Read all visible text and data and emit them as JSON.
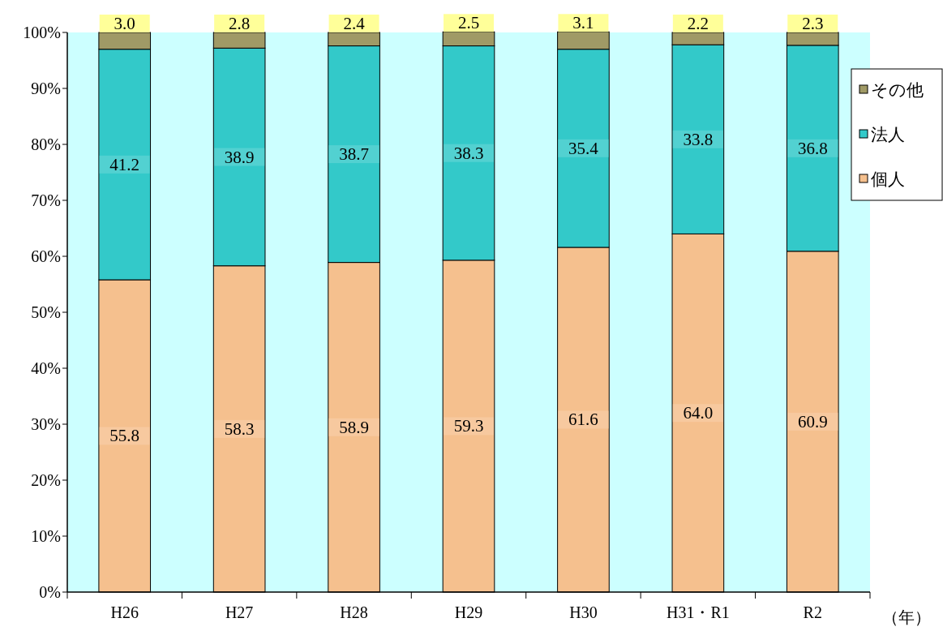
{
  "chart_data": {
    "type": "bar",
    "stacked": true,
    "xlabel": "（年）",
    "categories": [
      "H26",
      "H27",
      "H28",
      "H29",
      "H30",
      "H31・R1",
      "R2"
    ],
    "series": [
      {
        "name": "個人",
        "color": "#f5c08e",
        "values": [
          55.8,
          58.3,
          58.9,
          59.3,
          61.6,
          64.0,
          60.9
        ],
        "value_labels": [
          "55.8",
          "58.3",
          "58.9",
          "59.3",
          "61.6",
          "64.0",
          "60.9"
        ]
      },
      {
        "name": "法人",
        "color": "#33c9c9",
        "values": [
          41.2,
          38.9,
          38.7,
          38.3,
          35.4,
          33.8,
          36.8
        ],
        "value_labels": [
          "41.2",
          "38.9",
          "38.7",
          "38.3",
          "35.4",
          "33.8",
          "36.8"
        ]
      },
      {
        "name": "その他",
        "color": "#a09a66",
        "values": [
          3.0,
          2.8,
          2.4,
          2.5,
          3.1,
          2.2,
          2.3
        ],
        "value_labels": [
          "3.0",
          "2.8",
          "2.4",
          "2.5",
          "3.1",
          "2.2",
          "2.3"
        ]
      }
    ],
    "legend": "right",
    "grid": false,
    "ylim": [
      0,
      100
    ],
    "yticks": [
      {
        "value": 0,
        "label": "0%"
      },
      {
        "value": 10,
        "label": "10%"
      },
      {
        "value": 20,
        "label": "20%"
      },
      {
        "value": 30,
        "label": "30%"
      },
      {
        "value": 40,
        "label": "40%"
      },
      {
        "value": 50,
        "label": "50%"
      },
      {
        "value": 60,
        "label": "60%"
      },
      {
        "value": 70,
        "label": "70%"
      },
      {
        "value": 80,
        "label": "80%"
      },
      {
        "value": 90,
        "label": "90%"
      },
      {
        "value": 100,
        "label": "100%"
      }
    ]
  }
}
